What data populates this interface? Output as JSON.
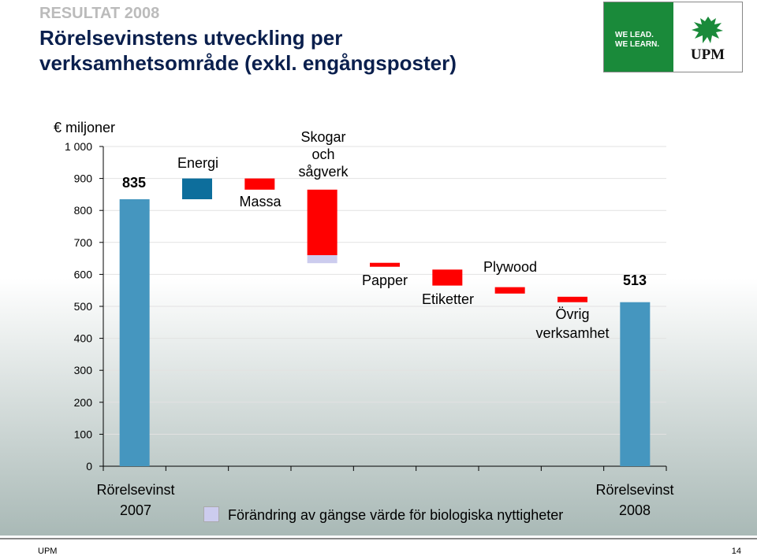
{
  "header": {
    "kicker": "RESULTAT 2008",
    "title_line1": "Rörelsevinstens utveckling per",
    "title_line2": "verksamhetsområde (exkl. engångsposter)"
  },
  "logo": {
    "slogan_line1": "WE LEAD.",
    "slogan_line2": "WE LEARN.",
    "wordmark": "UPM"
  },
  "legend": {
    "label": "Förändring av gängse värde för biologiska nyttigheter"
  },
  "footer": {
    "left": "UPM",
    "page": "14"
  },
  "colors": {
    "total_bar": "#4596bf",
    "energi": "#0d6e9c",
    "decrease": "#ff0000",
    "biological": "#ccccee"
  },
  "chart_data": {
    "type": "bar",
    "subtype": "waterfall",
    "unit_label": "€ miljoner",
    "ylim": [
      0,
      1000
    ],
    "yticks": [
      "0",
      "100",
      "200",
      "300",
      "400",
      "500",
      "600",
      "700",
      "800",
      "900",
      "1 000"
    ],
    "grid": true,
    "items": [
      {
        "label_lines": [
          "Rörelsevinst",
          "2007"
        ],
        "kind": "total",
        "start": 0,
        "end": 835,
        "value_label": "835",
        "color": "#4596bf"
      },
      {
        "label_lines": [
          "Energi"
        ],
        "kind": "change",
        "start": 835,
        "end": 900,
        "color": "#0d6e9c"
      },
      {
        "label_lines": [
          "Massa"
        ],
        "kind": "change",
        "start": 900,
        "end": 865,
        "color": "#ff0000"
      },
      {
        "label_lines": [
          "Skogar",
          "och",
          "sågverk"
        ],
        "kind": "change",
        "start": 865,
        "end": 660,
        "color": "#ff0000"
      },
      {
        "label_lines": [],
        "kind": "change",
        "start": 660,
        "end": 635,
        "color": "#ccccee"
      },
      {
        "label_lines": [
          "Papper"
        ],
        "kind": "change",
        "start": 635,
        "end": 625,
        "color": "#ff0000"
      },
      {
        "label_lines": [
          "Etiketter"
        ],
        "kind": "change",
        "start": 615,
        "end": 565,
        "color": "#ff0000"
      },
      {
        "label_lines": [
          "Plywood"
        ],
        "kind": "change",
        "start": 560,
        "end": 540,
        "color": "#ff0000"
      },
      {
        "label_lines": [
          "Övrig",
          "verksamhet"
        ],
        "kind": "change",
        "start": 530,
        "end": 513,
        "color": "#ff0000"
      },
      {
        "label_lines": [
          "Rörelsevinst",
          "2008"
        ],
        "kind": "total",
        "start": 0,
        "end": 513,
        "value_label": "513",
        "color": "#4596bf"
      }
    ]
  }
}
